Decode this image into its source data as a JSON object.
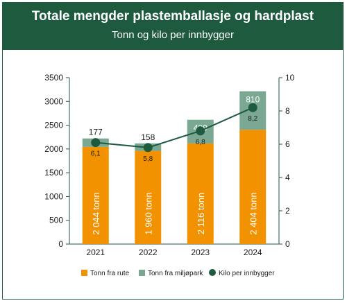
{
  "header": {
    "title": "Totale mengder plastemballasje og hardplast",
    "subtitle": "Tonn og kilo per innbygger"
  },
  "colors": {
    "header_bg": "#1d5a3e",
    "rute": "#f39200",
    "miljopark": "#7aa893",
    "kilo": "#1d5a3e",
    "axis": "#1d5a3e"
  },
  "chart_data": {
    "type": "bar",
    "categories": [
      "2021",
      "2022",
      "2023",
      "2024"
    ],
    "series": [
      {
        "name": "Tonn fra rute",
        "values": [
          2044,
          1960,
          2116,
          2404
        ],
        "labels": [
          "2 044 tonn",
          "1 960 tonn",
          "2 116 tonn",
          "2 404 tonn"
        ]
      },
      {
        "name": "Tonn fra miljøpark",
        "values": [
          177,
          158,
          499,
          810
        ],
        "labels": [
          "177",
          "158",
          "499",
          "810"
        ]
      },
      {
        "name": "Kilo per innbygger",
        "type": "line",
        "axis": "right",
        "values": [
          6.1,
          5.8,
          6.8,
          8.2
        ],
        "labels": [
          "6,1",
          "5,8",
          "6,8",
          "8,2"
        ]
      }
    ],
    "ylim": [
      0,
      3500
    ],
    "yticks": [
      "0",
      "500",
      "1000",
      "1500",
      "2000",
      "2500",
      "3000",
      "3500"
    ],
    "y2lim": [
      0,
      10
    ],
    "y2ticks": [
      "0",
      "2",
      "4",
      "6",
      "8",
      "10"
    ],
    "stacked": true,
    "grid": false,
    "legend": "bottom"
  }
}
